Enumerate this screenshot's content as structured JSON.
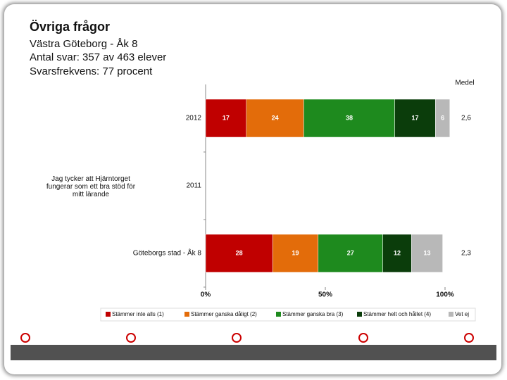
{
  "header": {
    "title": "Övriga frågor",
    "lines": [
      "Västra Göteborg - Åk 8",
      "Antal svar: 357 av 463 elever",
      "Svarsfrekvens: 77 procent"
    ]
  },
  "chart_data": {
    "type": "stacked-bar-horizontal",
    "question": "Jag tycker att Hjärntorget fungerar som ett bra stöd för mitt lärande",
    "categories": [
      "2012",
      "2011",
      "Göteborgs stad - Åk 8"
    ],
    "series": [
      {
        "name": "Stämmer inte alls (1)",
        "color": "#c00000",
        "values": [
          17,
          null,
          28
        ]
      },
      {
        "name": "Stämmer ganska dåligt (2)",
        "color": "#e36c0a",
        "values": [
          24,
          null,
          19
        ]
      },
      {
        "name": "Stämmer ganska bra (3)",
        "color": "#1e8a1e",
        "values": [
          38,
          null,
          27
        ]
      },
      {
        "name": "Stämmer helt och hållet (4)",
        "color": "#0b3d0b",
        "values": [
          17,
          null,
          12
        ]
      },
      {
        "name": "Vet ej",
        "color": "#b8b8b8",
        "values": [
          6,
          null,
          13
        ]
      }
    ],
    "xlim": [
      0,
      100
    ],
    "xticks": [
      {
        "value": 0,
        "label": "0%"
      },
      {
        "value": 50,
        "label": "50%"
      },
      {
        "value": 100,
        "label": "100%"
      }
    ],
    "mean": {
      "title": "Medel",
      "values": [
        2.6,
        null,
        2.3
      ],
      "value_labels": [
        "2,6",
        null,
        "2,3"
      ]
    }
  }
}
